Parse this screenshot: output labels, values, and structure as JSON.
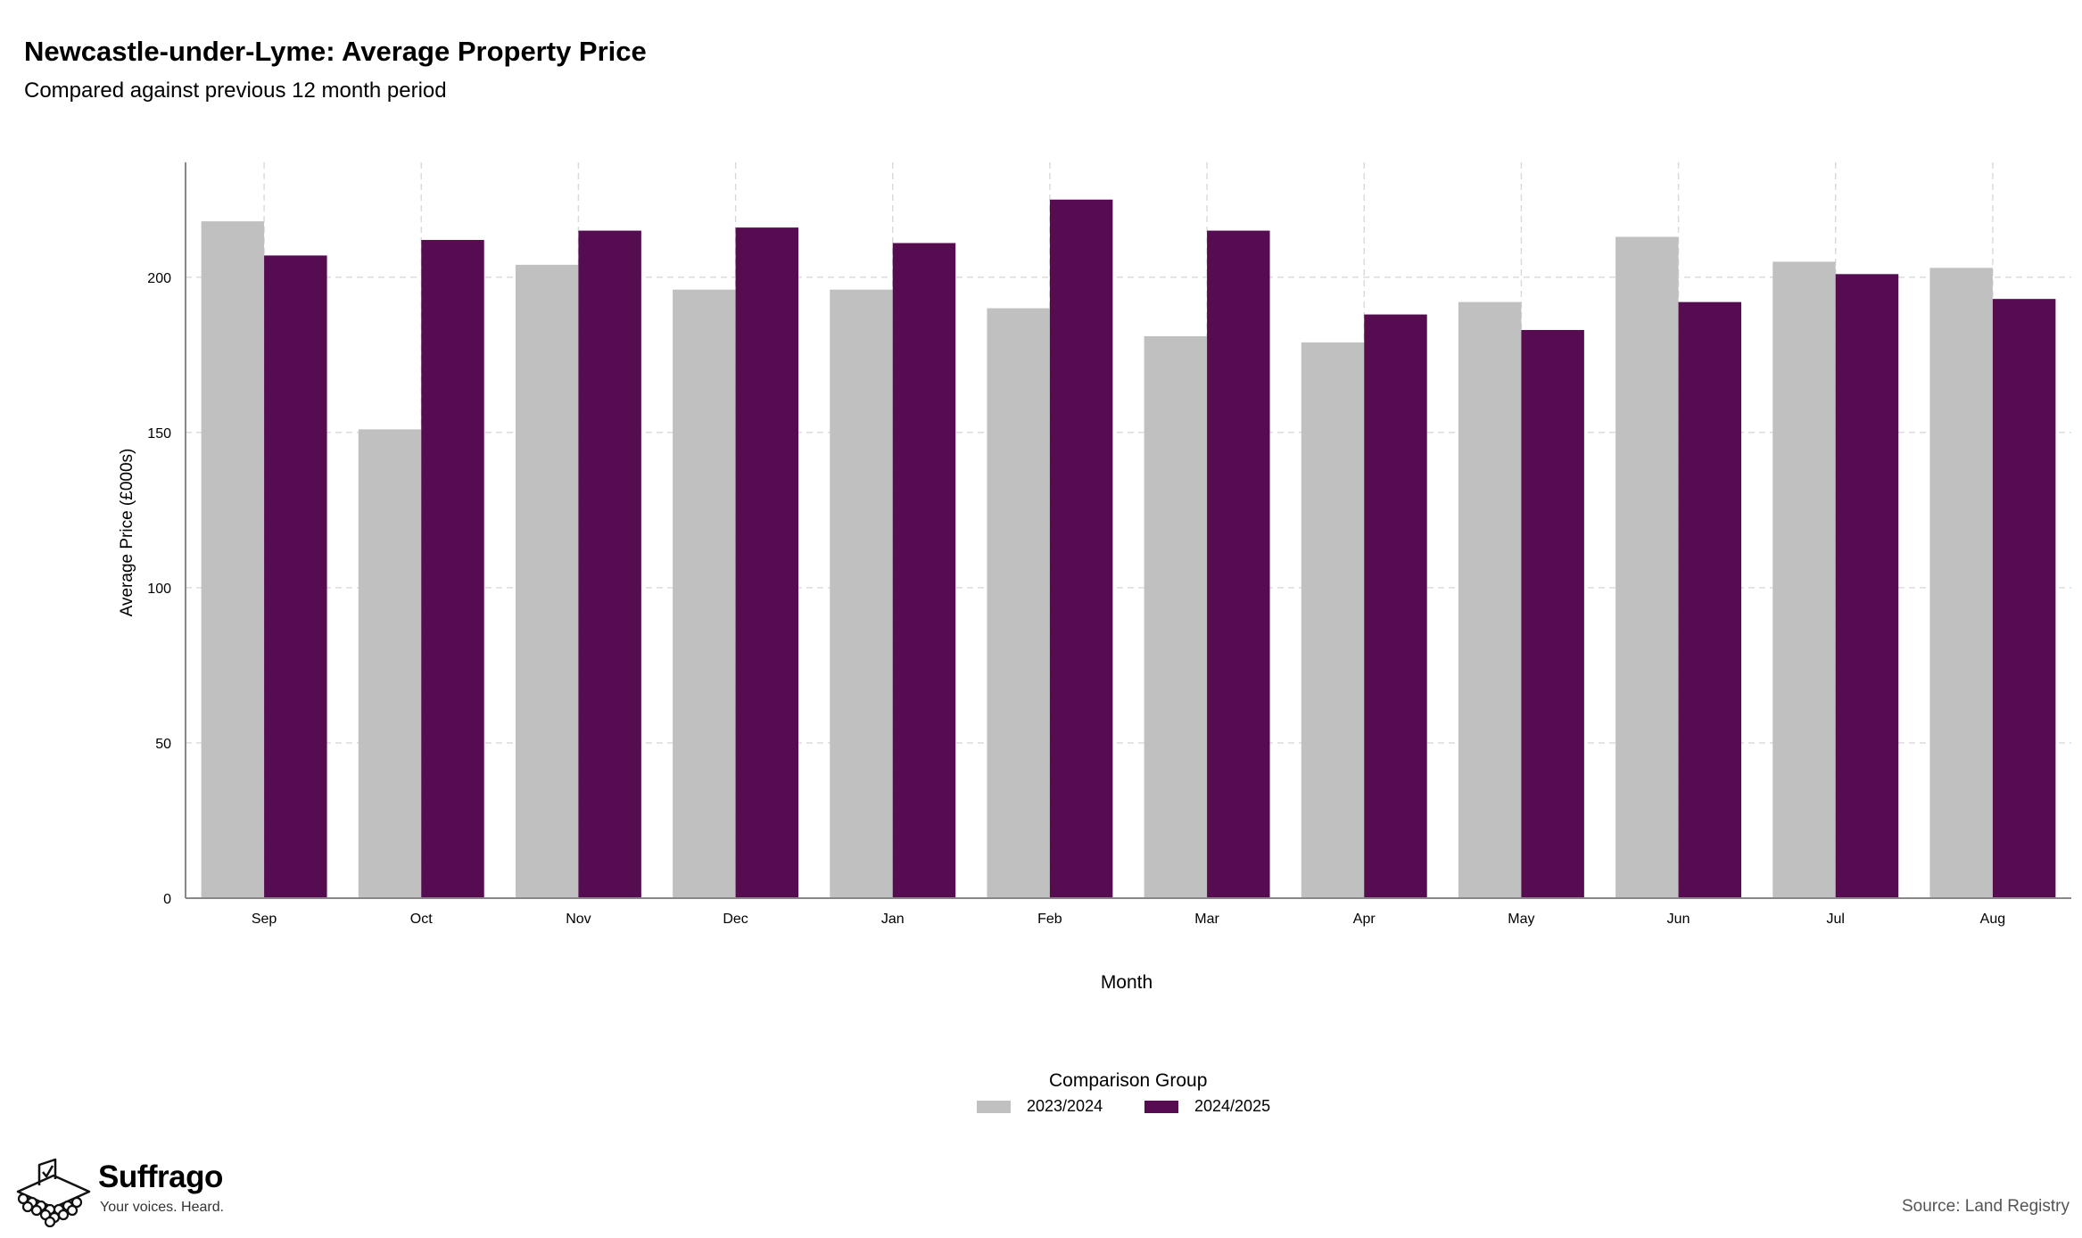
{
  "header": {
    "title": "Newcastle-under-Lyme: Average Property Price",
    "subtitle": "Compared against previous 12 month period"
  },
  "legend": {
    "title": "Comparison Group",
    "items": [
      {
        "label": "2023/2024",
        "color": "#c0c0c0"
      },
      {
        "label": "2024/2025",
        "color": "#550c51"
      }
    ]
  },
  "footer": {
    "brand_name": "Suffrago",
    "brand_tagline": "Your voices. Heard.",
    "source": "Source: Land Registry"
  },
  "chart_data": {
    "type": "bar",
    "xlabel": "Month",
    "ylabel": "Average Price (£000s)",
    "ylim": [
      0,
      237
    ],
    "yticks": [
      0,
      50,
      100,
      150,
      200
    ],
    "grid": true,
    "legend_position": "bottom",
    "categories": [
      "Sep",
      "Oct",
      "Nov",
      "Dec",
      "Jan",
      "Feb",
      "Mar",
      "Apr",
      "May",
      "Jun",
      "Jul",
      "Aug"
    ],
    "series": [
      {
        "name": "2023/2024",
        "color": "#c0c0c0",
        "values": [
          218,
          151,
          204,
          196,
          196,
          190,
          181,
          179,
          192,
          213,
          205,
          203
        ]
      },
      {
        "name": "2024/2025",
        "color": "#550c51",
        "values": [
          207,
          212,
          215,
          216,
          211,
          225,
          215,
          188,
          183,
          192,
          201,
          193
        ]
      }
    ]
  }
}
